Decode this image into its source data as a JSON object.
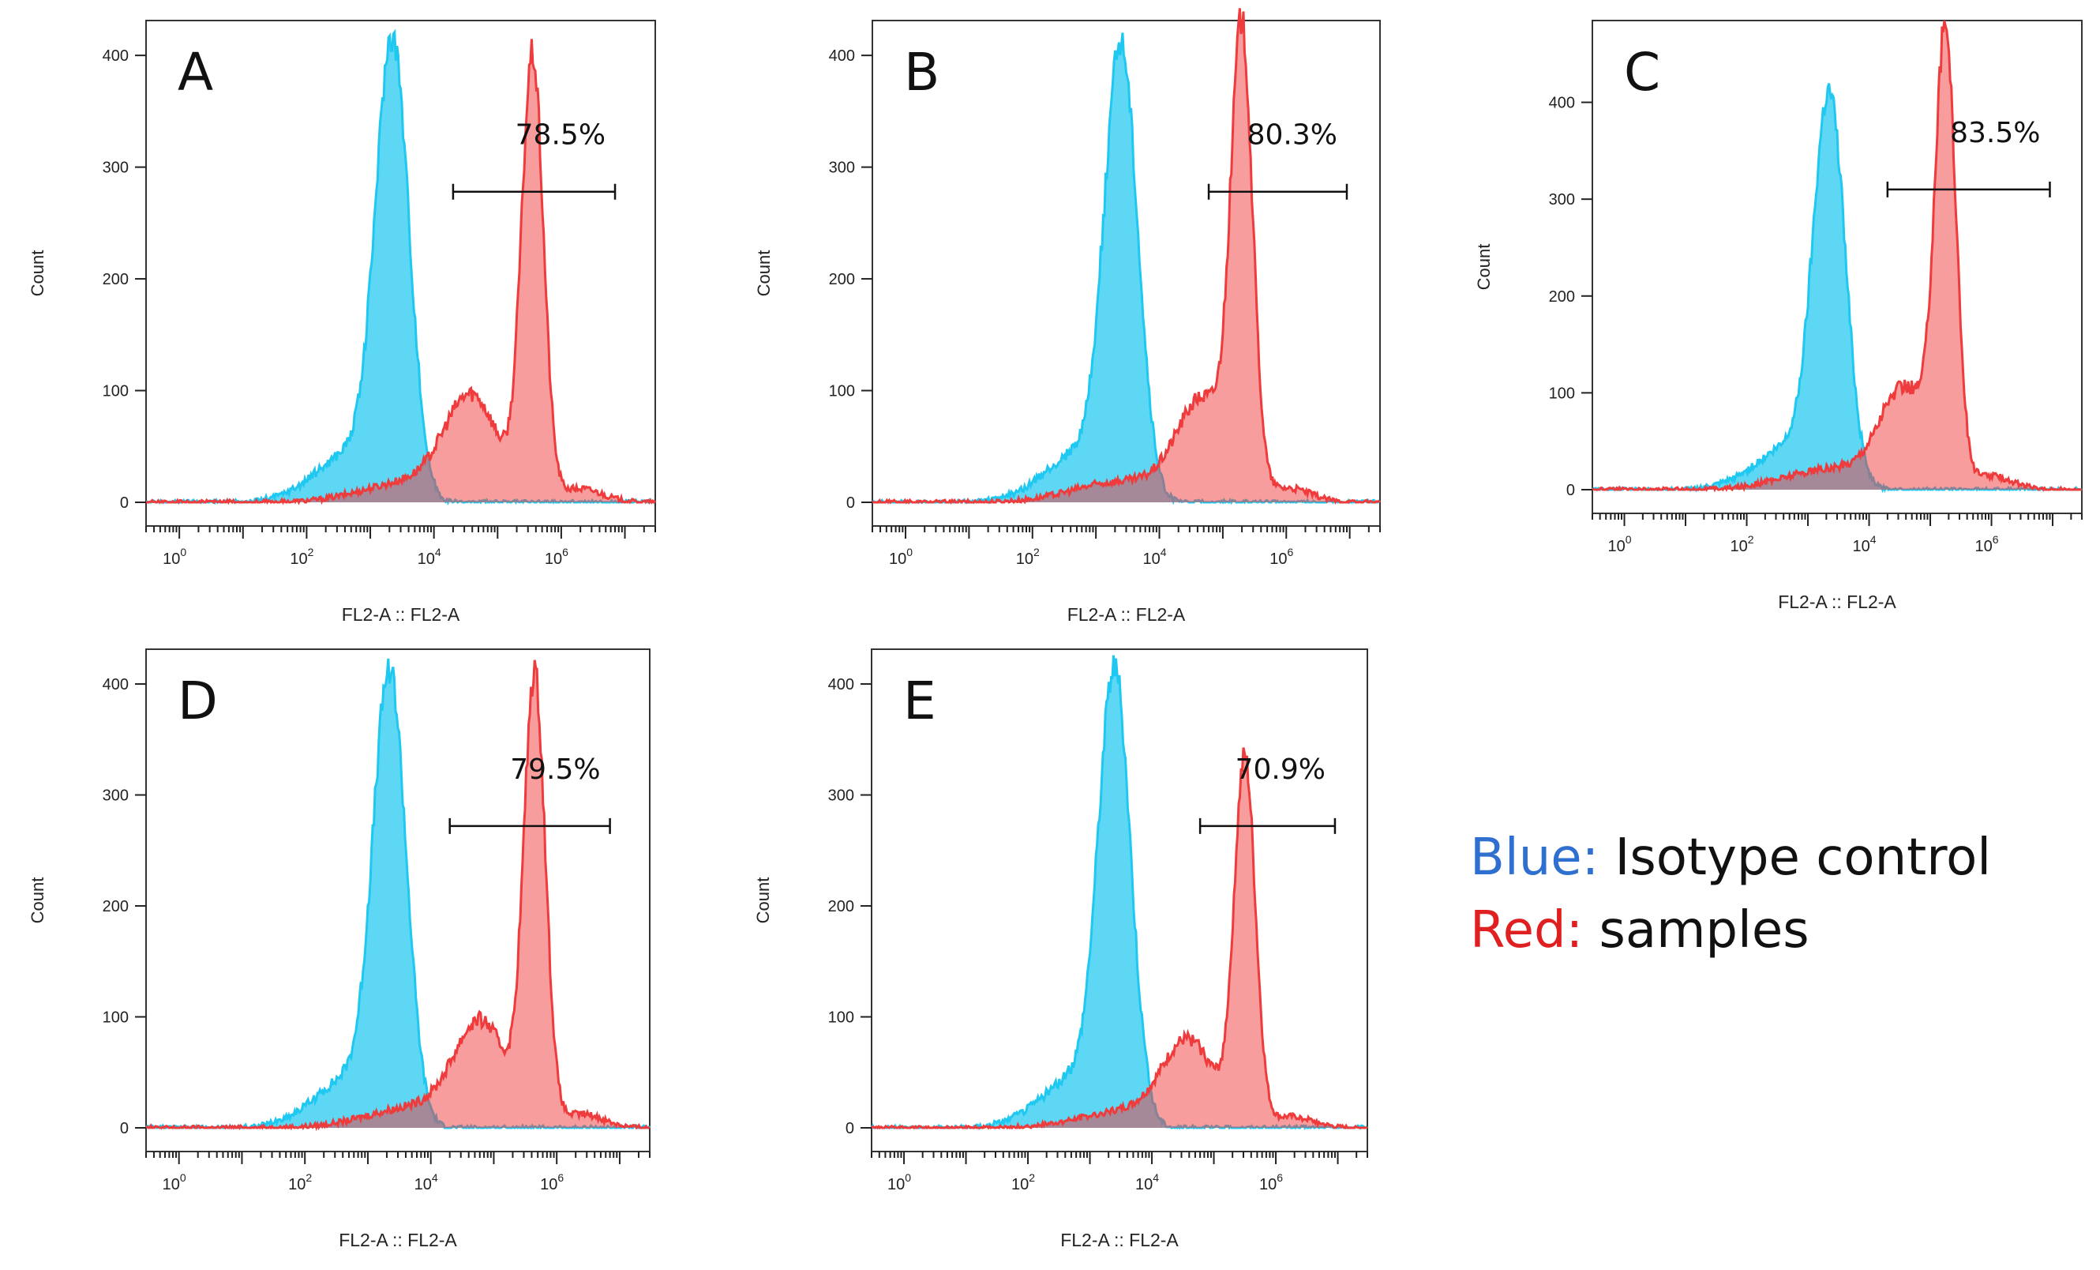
{
  "colors": {
    "isotype": "#1ec8f0",
    "sample": "#ef3b3b",
    "frame": "#333333"
  },
  "legend": {
    "items": [
      {
        "key": "Blue:",
        "text": "Isotype control",
        "color": "#2f6fd0"
      },
      {
        "key": "Red:",
        "text": "samples",
        "color": "#e02020"
      }
    ]
  },
  "chart_data": [
    {
      "type": "area",
      "panel": "A",
      "xlabel": "FL2-A :: FL2-A",
      "ylabel": "Count",
      "xscale": "log",
      "xlim": [
        0.3,
        30000000
      ],
      "ylim": [
        0,
        410
      ],
      "xticks": [
        {
          "v": 1,
          "e": "0"
        },
        {
          "v": 100,
          "e": "2"
        },
        {
          "v": 10000,
          "e": "4"
        },
        {
          "v": 1000000,
          "e": "6"
        }
      ],
      "yticks": [
        0,
        100,
        200,
        300,
        400
      ],
      "gate": {
        "label": "78.5%",
        "x1": 20000,
        "x2": 7000000,
        "y": 278
      },
      "series": [
        {
          "name": "Blue: Isotype control",
          "peak_log10": 3.35,
          "peak_count": 406
        },
        {
          "name": "Red: samples",
          "peak_log10": 5.55,
          "peak_count": 405,
          "shoulder_log10": 4.6,
          "shoulder_count": 100
        }
      ]
    },
    {
      "type": "area",
      "panel": "B",
      "xlabel": "FL2-A :: FL2-A",
      "ylabel": "Count",
      "xscale": "log",
      "xlim": [
        0.3,
        30000000
      ],
      "ylim": [
        0,
        410
      ],
      "xticks": [
        {
          "v": 1,
          "e": "0"
        },
        {
          "v": 100,
          "e": "2"
        },
        {
          "v": 10000,
          "e": "4"
        },
        {
          "v": 1000000,
          "e": "6"
        }
      ],
      "yticks": [
        0,
        100,
        200,
        300,
        400
      ],
      "gate": {
        "label": "80.3%",
        "x1": 60000,
        "x2": 9000000,
        "y": 278
      },
      "series": [
        {
          "name": "Blue: Isotype control",
          "peak_log10": 3.4,
          "peak_count": 402
        },
        {
          "name": "Red: samples",
          "peak_log10": 5.3,
          "peak_count": 410,
          "shoulder_log10": 4.7,
          "shoulder_count": 110
        }
      ]
    },
    {
      "type": "area",
      "panel": "C",
      "xlabel": "FL2-A :: FL2-A",
      "ylabel": "Count",
      "xscale": "log",
      "xlim": [
        0.3,
        30000000
      ],
      "ylim": [
        0,
        460
      ],
      "xticks": [
        {
          "v": 1,
          "e": "0"
        },
        {
          "v": 100,
          "e": "2"
        },
        {
          "v": 10000,
          "e": "4"
        },
        {
          "v": 1000000,
          "e": "6"
        }
      ],
      "yticks": [
        0,
        100,
        200,
        300,
        400
      ],
      "gate": {
        "label": "83.5%",
        "x1": 20000,
        "x2": 9000000,
        "y": 310
      },
      "series": [
        {
          "name": "Blue: Isotype control",
          "peak_log10": 3.35,
          "peak_count": 402
        },
        {
          "name": "Red: samples",
          "peak_log10": 5.25,
          "peak_count": 462,
          "shoulder_log10": 4.6,
          "shoulder_count": 100
        }
      ]
    },
    {
      "type": "area",
      "panel": "D",
      "xlabel": "FL2-A :: FL2-A",
      "ylabel": "Count",
      "xscale": "log",
      "xlim": [
        0.3,
        30000000
      ],
      "ylim": [
        0,
        410
      ],
      "xticks": [
        {
          "v": 1,
          "e": "0"
        },
        {
          "v": 100,
          "e": "2"
        },
        {
          "v": 10000,
          "e": "4"
        },
        {
          "v": 1000000,
          "e": "6"
        }
      ],
      "yticks": [
        0,
        100,
        200,
        300,
        400
      ],
      "gate": {
        "label": "79.5%",
        "x1": 20000,
        "x2": 7000000,
        "y": 272
      },
      "series": [
        {
          "name": "Blue: Isotype control",
          "peak_log10": 3.35,
          "peak_count": 402
        },
        {
          "name": "Red: samples",
          "peak_log10": 5.65,
          "peak_count": 410,
          "shoulder_log10": 4.8,
          "shoulder_count": 80
        }
      ]
    },
    {
      "type": "area",
      "panel": "E",
      "xlabel": "FL2-A :: FL2-A",
      "ylabel": "Count",
      "xscale": "log",
      "xlim": [
        0.3,
        30000000
      ],
      "ylim": [
        0,
        410
      ],
      "xticks": [
        {
          "v": 1,
          "e": "0"
        },
        {
          "v": 100,
          "e": "2"
        },
        {
          "v": 10000,
          "e": "4"
        },
        {
          "v": 1000000,
          "e": "6"
        }
      ],
      "yticks": [
        0,
        100,
        200,
        300,
        400
      ],
      "gate": {
        "label": "70.9%",
        "x1": 60000,
        "x2": 9000000,
        "y": 272
      },
      "series": [
        {
          "name": "Blue: Isotype control",
          "peak_log10": 3.4,
          "peak_count": 404
        },
        {
          "name": "Red: samples",
          "peak_log10": 5.5,
          "peak_count": 335,
          "shoulder_log10": 4.6,
          "shoulder_count": 100
        }
      ]
    }
  ]
}
